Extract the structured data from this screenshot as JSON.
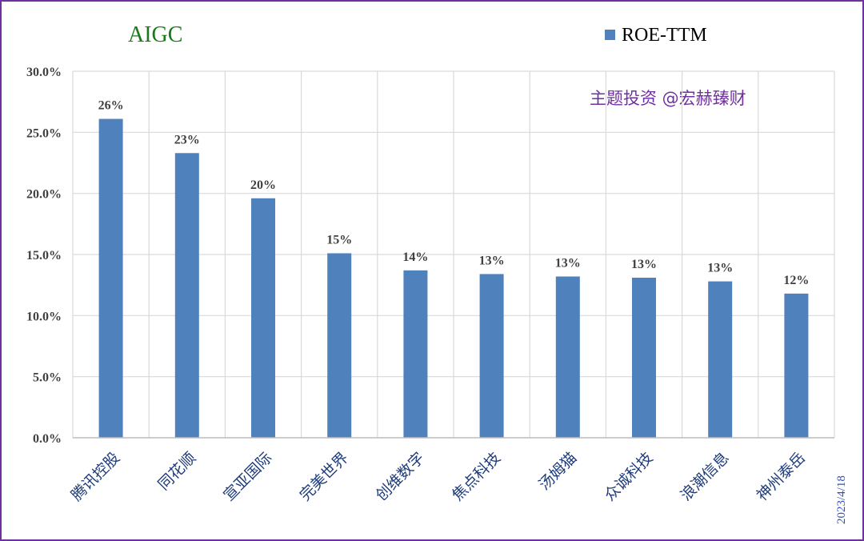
{
  "chart_data": {
    "type": "bar",
    "title": "AIGC",
    "watermark": "主题投资 @宏赫臻财",
    "date": "2023/4/18",
    "categories": [
      "腾讯控股",
      "同花顺",
      "宣亚国际",
      "完美世界",
      "创维数字",
      "焦点科技",
      "汤姆猫",
      "众诚科技",
      "浪潮信息",
      "神州泰岳"
    ],
    "series": [
      {
        "name": "ROE-TTM",
        "values": [
          26.1,
          23.3,
          19.6,
          15.1,
          13.7,
          13.4,
          13.2,
          13.1,
          12.8,
          11.8
        ],
        "labels": [
          "26%",
          "23%",
          "20%",
          "15%",
          "14%",
          "13%",
          "13%",
          "13%",
          "13%",
          "12%"
        ],
        "color": "#4f81bd"
      }
    ],
    "ylim": [
      0,
      30
    ],
    "yticks": [
      "0.0%",
      "5.0%",
      "10.0%",
      "15.0%",
      "20.0%",
      "25.0%",
      "30.0%"
    ],
    "ytick_values": [
      0,
      5,
      10,
      15,
      20,
      25,
      30
    ],
    "legend_position": "top-right",
    "grid": true
  }
}
